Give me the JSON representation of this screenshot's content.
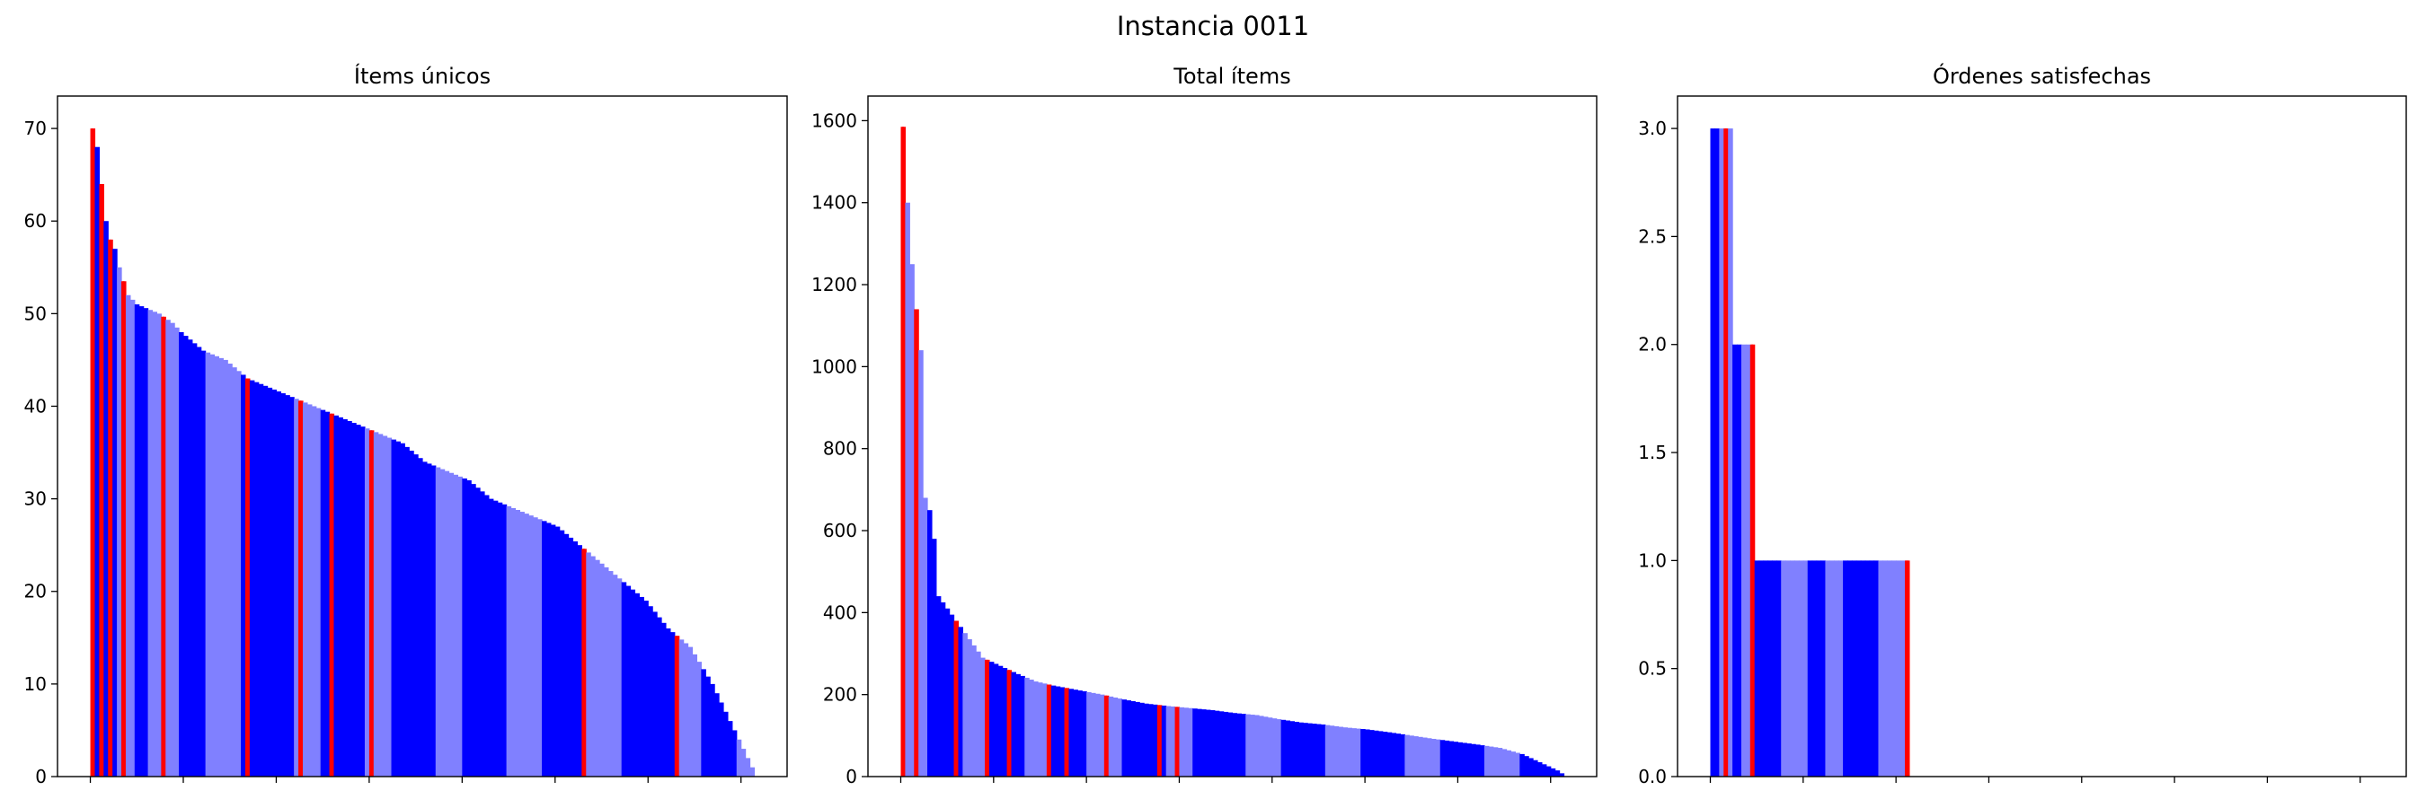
{
  "figure": {
    "title": "Instancia 0011"
  },
  "colors": {
    "dark": "#0000ff",
    "light": "#8080ff",
    "highlight": "#ff0000",
    "frame": "#000000"
  },
  "chart_data": [
    {
      "type": "bar",
      "title": "Ítems únicos",
      "xlabel": "",
      "ylabel": "",
      "ylim": [
        0,
        73.5
      ],
      "yticks": [
        0,
        10,
        20,
        30,
        40,
        50,
        60,
        70
      ],
      "grid": false,
      "n_bars": 150,
      "series_profile": [
        [
          0,
          70
        ],
        [
          1,
          68
        ],
        [
          2,
          64
        ],
        [
          3,
          60
        ],
        [
          4,
          58
        ],
        [
          5,
          57
        ],
        [
          6,
          55
        ],
        [
          8,
          52
        ],
        [
          10,
          51
        ],
        [
          15,
          50
        ],
        [
          18,
          49
        ],
        [
          20,
          48
        ],
        [
          25,
          46
        ],
        [
          30,
          45
        ],
        [
          35,
          43
        ],
        [
          40,
          42
        ],
        [
          45,
          41
        ],
        [
          50,
          40
        ],
        [
          55,
          39
        ],
        [
          60,
          38
        ],
        [
          65,
          37
        ],
        [
          70,
          36
        ],
        [
          75,
          34
        ],
        [
          80,
          33
        ],
        [
          85,
          32
        ],
        [
          90,
          30
        ],
        [
          95,
          29
        ],
        [
          100,
          28
        ],
        [
          105,
          27
        ],
        [
          110,
          25
        ],
        [
          115,
          23
        ],
        [
          120,
          21
        ],
        [
          125,
          19
        ],
        [
          130,
          16
        ],
        [
          135,
          14
        ],
        [
          140,
          10
        ],
        [
          145,
          5
        ],
        [
          148,
          2
        ],
        [
          149,
          1
        ]
      ],
      "highlighted_bars": [
        0,
        2,
        4,
        7,
        16,
        35,
        47,
        54,
        63,
        111,
        132
      ],
      "color_bands": [
        [
          0,
          6,
          "dark"
        ],
        [
          6,
          10,
          "light"
        ],
        [
          10,
          13,
          "dark"
        ],
        [
          13,
          20,
          "light"
        ],
        [
          20,
          26,
          "dark"
        ],
        [
          26,
          34,
          "light"
        ],
        [
          34,
          46,
          "dark"
        ],
        [
          46,
          52,
          "light"
        ],
        [
          52,
          62,
          "dark"
        ],
        [
          62,
          68,
          "light"
        ],
        [
          68,
          78,
          "dark"
        ],
        [
          78,
          84,
          "light"
        ],
        [
          84,
          94,
          "dark"
        ],
        [
          94,
          102,
          "light"
        ],
        [
          102,
          112,
          "dark"
        ],
        [
          112,
          120,
          "light"
        ],
        [
          120,
          132,
          "dark"
        ],
        [
          132,
          138,
          "light"
        ],
        [
          138,
          146,
          "dark"
        ],
        [
          146,
          150,
          "light"
        ]
      ]
    },
    {
      "type": "bar",
      "title": "Total ítems",
      "xlabel": "",
      "ylabel": "",
      "ylim": [
        0,
        1660
      ],
      "yticks": [
        0,
        200,
        400,
        600,
        800,
        1000,
        1200,
        1400,
        1600
      ],
      "grid": false,
      "n_bars": 150,
      "series_profile": [
        [
          0,
          1585
        ],
        [
          1,
          1400
        ],
        [
          2,
          1250
        ],
        [
          3,
          1140
        ],
        [
          4,
          1040
        ],
        [
          5,
          680
        ],
        [
          6,
          650
        ],
        [
          7,
          580
        ],
        [
          8,
          440
        ],
        [
          10,
          410
        ],
        [
          12,
          380
        ],
        [
          14,
          350
        ],
        [
          16,
          320
        ],
        [
          18,
          290
        ],
        [
          22,
          270
        ],
        [
          26,
          250
        ],
        [
          30,
          232
        ],
        [
          34,
          222
        ],
        [
          40,
          210
        ],
        [
          45,
          200
        ],
        [
          50,
          188
        ],
        [
          55,
          178
        ],
        [
          60,
          172
        ],
        [
          65,
          167
        ],
        [
          70,
          162
        ],
        [
          75,
          155
        ],
        [
          80,
          150
        ],
        [
          85,
          140
        ],
        [
          90,
          132
        ],
        [
          95,
          127
        ],
        [
          100,
          120
        ],
        [
          105,
          115
        ],
        [
          110,
          108
        ],
        [
          115,
          100
        ],
        [
          120,
          92
        ],
        [
          125,
          85
        ],
        [
          130,
          78
        ],
        [
          135,
          70
        ],
        [
          140,
          55
        ],
        [
          143,
          40
        ],
        [
          146,
          25
        ],
        [
          148,
          15
        ],
        [
          149,
          8
        ]
      ],
      "highlighted_bars": [
        0,
        3,
        12,
        19,
        24,
        33,
        37,
        46,
        58,
        62
      ],
      "color_bands": [
        [
          0,
          6,
          "light"
        ],
        [
          6,
          14,
          "dark"
        ],
        [
          14,
          20,
          "light"
        ],
        [
          20,
          28,
          "dark"
        ],
        [
          28,
          34,
          "light"
        ],
        [
          34,
          42,
          "dark"
        ],
        [
          42,
          50,
          "light"
        ],
        [
          50,
          60,
          "dark"
        ],
        [
          60,
          66,
          "light"
        ],
        [
          66,
          78,
          "dark"
        ],
        [
          78,
          86,
          "light"
        ],
        [
          86,
          96,
          "dark"
        ],
        [
          96,
          104,
          "light"
        ],
        [
          104,
          114,
          "dark"
        ],
        [
          114,
          122,
          "light"
        ],
        [
          122,
          132,
          "dark"
        ],
        [
          132,
          140,
          "light"
        ],
        [
          140,
          150,
          "dark"
        ]
      ]
    },
    {
      "type": "bar",
      "title": "Órdenes satisfechas",
      "xlabel": "",
      "ylabel": "",
      "ylim": [
        0,
        3.15
      ],
      "yticks": [
        "0.0",
        "0.5",
        "1.0",
        "1.5",
        "2.0",
        "2.5",
        "3.0"
      ],
      "grid": false,
      "n_bars": 150,
      "series_profile": [
        [
          0,
          3
        ],
        [
          2,
          3
        ],
        [
          4,
          3
        ],
        [
          5,
          2
        ],
        [
          9,
          2
        ],
        [
          10,
          1
        ],
        [
          44,
          1
        ],
        [
          45,
          0
        ],
        [
          149,
          0
        ]
      ],
      "highlighted_bars": [
        3,
        9,
        44
      ],
      "color_bands": [
        [
          0,
          2,
          "dark"
        ],
        [
          2,
          5,
          "light"
        ],
        [
          5,
          7,
          "dark"
        ],
        [
          7,
          9,
          "light"
        ],
        [
          9,
          10,
          "dark"
        ],
        [
          10,
          16,
          "dark"
        ],
        [
          16,
          22,
          "light"
        ],
        [
          22,
          26,
          "dark"
        ],
        [
          26,
          30,
          "light"
        ],
        [
          30,
          38,
          "dark"
        ],
        [
          38,
          44,
          "light"
        ],
        [
          44,
          45,
          "dark"
        ]
      ]
    }
  ]
}
